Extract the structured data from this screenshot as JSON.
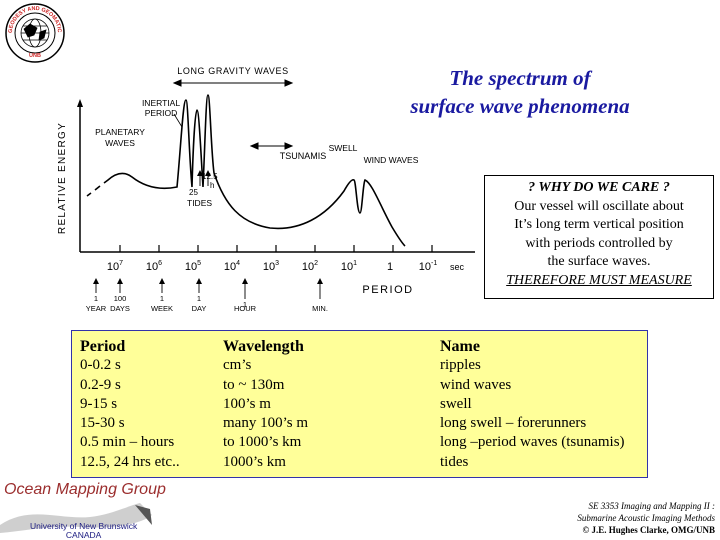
{
  "logo": {
    "ring_text": "GEODESY AND GEOMATICS ENGINEERING",
    "bottom_text": "UNB"
  },
  "title": {
    "line1": "The spectrum of",
    "line2": "surface wave phenomena"
  },
  "diagram": {
    "ylabel": "RELATIVE ENERGY",
    "xlabel": "PERIOD",
    "labels": {
      "long_gravity": "LONG GRAVITY WAVES",
      "inertial": "INERTIAL",
      "inertial2": "PERIOD",
      "planetary": "PLANETARY",
      "planetary2": "WAVES",
      "tsunamis": "TSUNAMIS",
      "swell": "SWELL",
      "wind_waves": "WIND WAVES",
      "h12": "12.5",
      "h": "h",
      "h25": "25",
      "tides": "TIDES"
    },
    "ticks": [
      {
        "base": "10",
        "exp": "7"
      },
      {
        "base": "10",
        "exp": "6"
      },
      {
        "base": "10",
        "exp": "5"
      },
      {
        "base": "10",
        "exp": "4"
      },
      {
        "base": "10",
        "exp": "3"
      },
      {
        "base": "10",
        "exp": "2"
      },
      {
        "base": "10",
        "exp": "1"
      },
      {
        "base": "1",
        "exp": ""
      },
      {
        "base": "10",
        "exp": "-1"
      }
    ],
    "sec": "sec",
    "markers": [
      {
        "line1": "1",
        "line2": "YEAR"
      },
      {
        "line1": "100",
        "line2": "DAYS"
      },
      {
        "line1": "1",
        "line2": "WEEK"
      },
      {
        "line1": "1",
        "line2": "DAY"
      },
      {
        "line1": "1",
        "line2": "HOUR"
      },
      {
        "line1": "",
        "line2": "MIN."
      }
    ]
  },
  "why": {
    "heading": "? WHY DO WE CARE ?",
    "lines": [
      "Our vessel will oscillate about",
      "It’s long term vertical position",
      "with periods controlled by",
      "the surface waves."
    ],
    "emph": "THEREFORE MUST MEASURE"
  },
  "table": {
    "headers": {
      "period": "Period",
      "wavelength": "Wavelength",
      "name": "Name"
    },
    "rows": [
      {
        "period": "0-0.2 s",
        "wavelength": "cm’s",
        "name": "ripples"
      },
      {
        "period": "0.2-9 s",
        "wavelength": "to ~ 130m",
        "name": "wind waves"
      },
      {
        "period": "9-15 s",
        "wavelength": "100’s m",
        "name": "swell"
      },
      {
        "period": "15-30 s",
        "wavelength": "many 100’s m",
        "name": "long swell – forerunners"
      },
      {
        "period": "0.5 min – hours",
        "wavelength": "to 1000’s km",
        "name": "long –period waves (tsunamis)"
      },
      {
        "period": "12.5, 24 hrs etc..",
        "wavelength": "1000’s km",
        "name": "tides"
      }
    ]
  },
  "footer": {
    "group": "Ocean Mapping Group",
    "unb1": "University of New Brunswick",
    "unb2": "CANADA",
    "course1": "SE 3353 Imaging and Mapping II :",
    "course2": "Submarine Acoustic Imaging Methods",
    "copyright": "© J.E. Hughes Clarke, OMG/UNB"
  },
  "colors": {
    "title": "#1a1aa0",
    "table_bg": "#ffff99",
    "table_border": "#3333aa",
    "logo_red": "#cc2222",
    "omg": "#9b2d2d"
  }
}
